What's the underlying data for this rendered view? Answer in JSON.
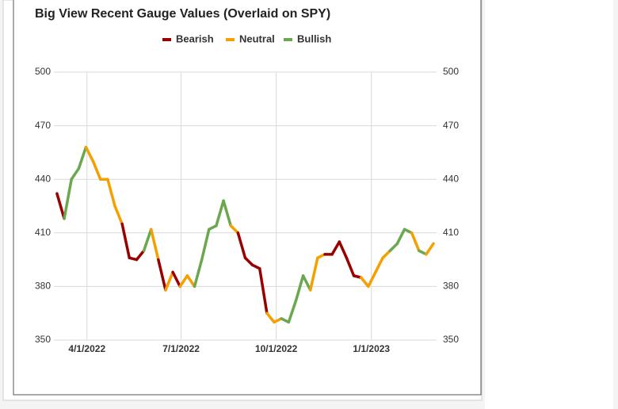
{
  "chart_data": {
    "type": "line",
    "title": "Big View Recent Gauge Values (Overlaid on SPY)",
    "x": [
      "2022-03-03",
      "2022-03-10",
      "2022-03-17",
      "2022-03-24",
      "2022-03-31",
      "2022-04-07",
      "2022-04-14",
      "2022-04-21",
      "2022-04-28",
      "2022-05-05",
      "2022-05-12",
      "2022-05-19",
      "2022-05-26",
      "2022-06-02",
      "2022-06-09",
      "2022-06-16",
      "2022-06-23",
      "2022-06-30",
      "2022-07-07",
      "2022-07-14",
      "2022-07-21",
      "2022-07-28",
      "2022-08-04",
      "2022-08-11",
      "2022-08-18",
      "2022-08-25",
      "2022-09-01",
      "2022-09-08",
      "2022-09-15",
      "2022-09-22",
      "2022-09-29",
      "2022-10-06",
      "2022-10-13",
      "2022-10-20",
      "2022-10-27",
      "2022-11-03",
      "2022-11-10",
      "2022-11-17",
      "2022-11-24",
      "2022-12-01",
      "2022-12-08",
      "2022-12-15",
      "2022-12-22",
      "2022-12-29",
      "2023-01-05",
      "2023-01-12",
      "2023-01-19",
      "2023-01-26",
      "2023-02-02",
      "2023-02-09",
      "2023-02-16",
      "2023-02-23",
      "2023-03-02"
    ],
    "series": [
      {
        "name": "Bearish",
        "color": "#990000",
        "values": [
          432,
          418,
          null,
          null,
          null,
          null,
          null,
          null,
          null,
          null,
          396,
          395,
          400,
          null,
          null,
          378,
          null,
          380,
          null,
          null,
          null,
          null,
          null,
          null,
          null,
          null,
          396,
          392,
          390,
          365,
          null,
          null,
          null,
          null,
          null,
          null,
          null,
          null,
          398,
          405,
          396,
          386,
          385,
          null,
          null,
          null,
          null,
          null,
          null,
          null,
          null,
          null,
          null
        ]
      },
      {
        "name": "Neutral",
        "color": "#f5a000",
        "values": [
          null,
          null,
          null,
          null,
          null,
          450,
          440,
          440,
          425,
          415,
          null,
          null,
          null,
          null,
          395,
          null,
          388,
          null,
          386,
          380,
          null,
          null,
          null,
          null,
          null,
          410,
          null,
          null,
          null,
          null,
          360,
          362,
          null,
          null,
          null,
          null,
          396,
          398,
          null,
          null,
          null,
          null,
          null,
          380,
          388,
          396,
          400,
          null,
          null,
          null,
          400,
          null,
          404
        ]
      },
      {
        "name": "Bullish",
        "color": "#6aa84f",
        "values": [
          null,
          null,
          440,
          446,
          458,
          null,
          null,
          null,
          null,
          null,
          null,
          null,
          null,
          412,
          null,
          null,
          null,
          null,
          null,
          null,
          395,
          412,
          414,
          428,
          414,
          null,
          null,
          null,
          null,
          null,
          null,
          null,
          360,
          372,
          386,
          378,
          null,
          null,
          null,
          null,
          null,
          null,
          null,
          null,
          null,
          null,
          null,
          404,
          412,
          410,
          null,
          398,
          null
        ]
      }
    ],
    "xlim": [
      "2022-02-28",
      "2023-03-05"
    ],
    "xticks": [
      {
        "value": "2022-04-01",
        "label": "4/1/2022"
      },
      {
        "value": "2022-07-01",
        "label": "7/1/2022"
      },
      {
        "value": "2022-10-01",
        "label": "10/1/2022"
      },
      {
        "value": "2023-01-01",
        "label": "1/1/2023"
      }
    ],
    "ylim": [
      350,
      500
    ],
    "yticks": [
      350,
      380,
      410,
      440,
      470,
      500
    ],
    "grid": true,
    "legend": "top"
  }
}
